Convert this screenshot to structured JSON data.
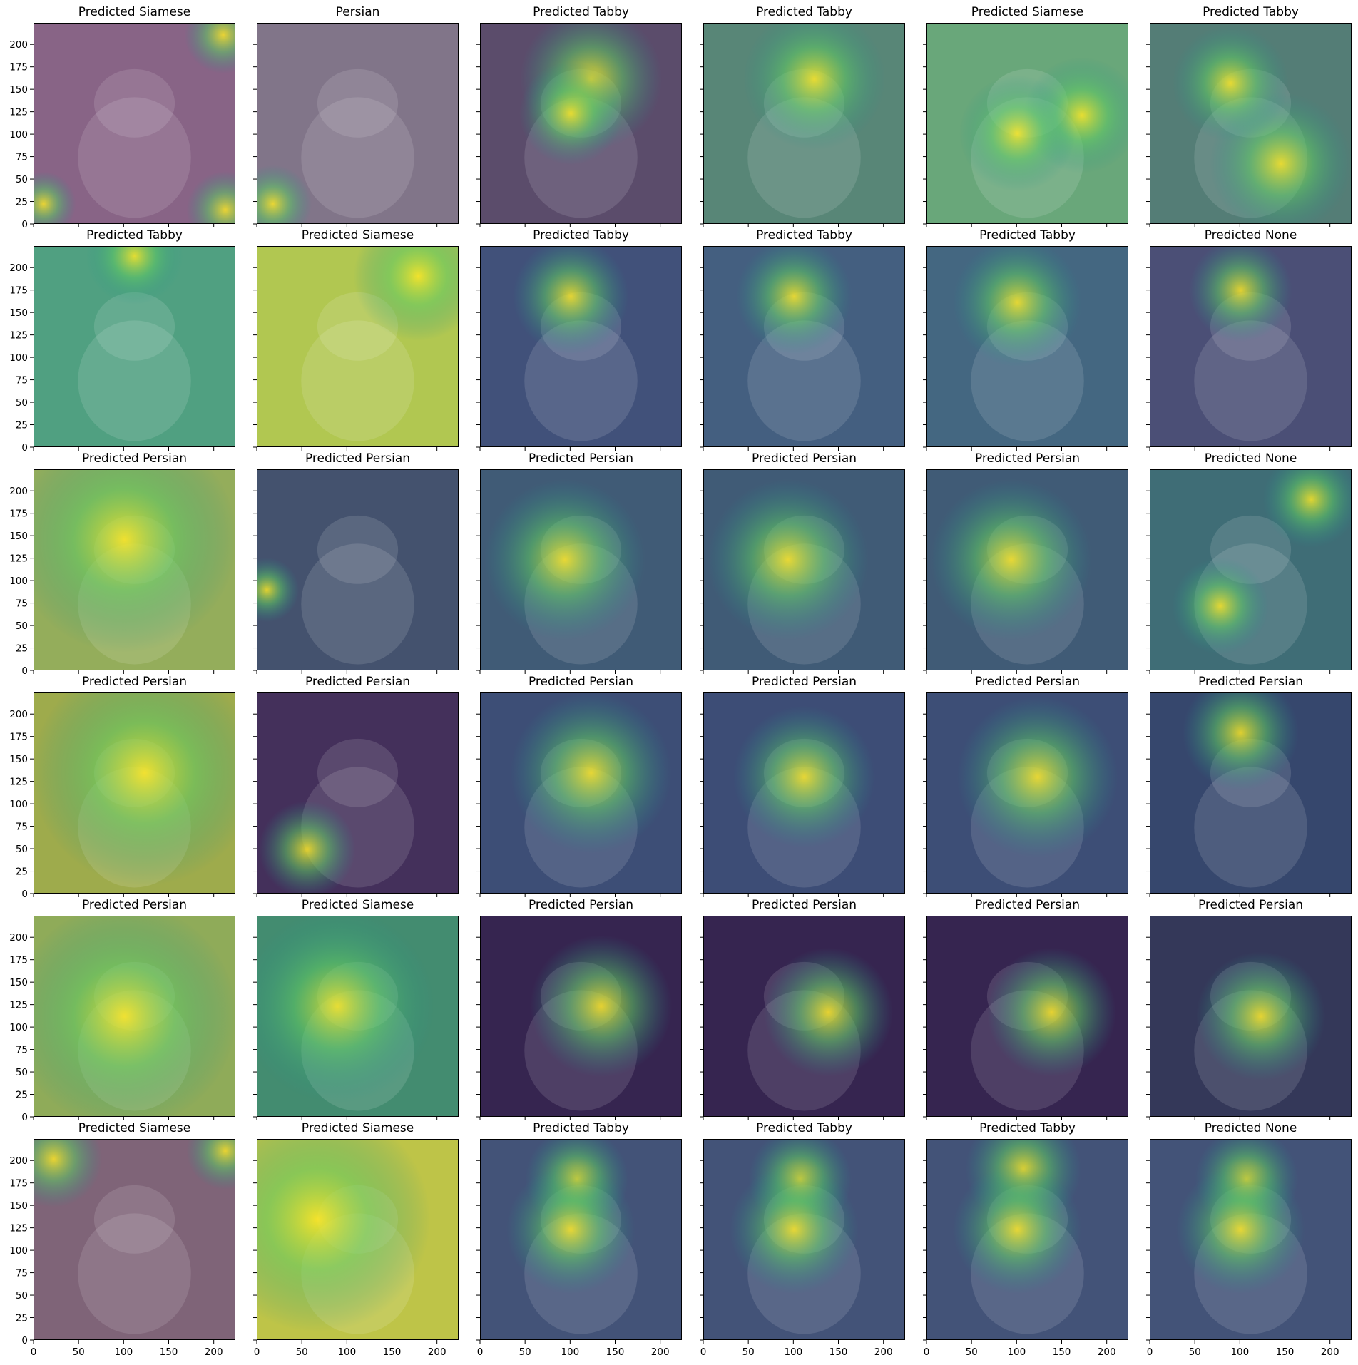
{
  "colormap": [
    "#440154",
    "#3b528b",
    "#21918c",
    "#5ec962",
    "#fde725"
  ],
  "chart_data": {
    "type": "heatmap",
    "description_grid": "6 rows x 6 columns of image panels with overlaid activation heatmaps",
    "xlim": [
      0,
      224
    ],
    "ylim": [
      0,
      224
    ],
    "xticks": [
      0,
      50,
      100,
      150,
      200
    ],
    "yticks": [
      0,
      25,
      50,
      75,
      100,
      125,
      150,
      175,
      200
    ],
    "panels": [
      [
        {
          "title": "Predicted Siamese",
          "bg": "#8f7a8c",
          "hot": [
            [
              0.94,
              0.06,
              0.12
            ],
            [
              0.95,
              0.93,
              0.12
            ],
            [
              0.05,
              0.9,
              0.1
            ]
          ],
          "tint": "#7a3d7a"
        },
        {
          "title": "Persian",
          "bg": "#8b8590",
          "hot": [
            [
              0.08,
              0.9,
              0.12
            ]
          ],
          "tint": "#6f5a7d"
        },
        {
          "title": "Predicted Tabby",
          "bg": "#6c5f76",
          "hot": [
            [
              0.55,
              0.28,
              0.22
            ],
            [
              0.45,
              0.45,
              0.16
            ]
          ],
          "tint": "#3c2a5a"
        },
        {
          "title": "Predicted Tabby",
          "bg": "#6f8a7c",
          "hot": [
            [
              0.55,
              0.28,
              0.22
            ]
          ],
          "tint": "#2f7f6f"
        },
        {
          "title": "Predicted Siamese",
          "bg": "#78a382",
          "hot": [
            [
              0.77,
              0.46,
              0.18
            ],
            [
              0.45,
              0.55,
              0.18
            ]
          ],
          "tint": "#4caf6e"
        },
        {
          "title": "Predicted Tabby",
          "bg": "#6a7f7a",
          "hot": [
            [
              0.65,
              0.7,
              0.22
            ],
            [
              0.4,
              0.3,
              0.18
            ]
          ],
          "tint": "#2c7c70"
        }
      ],
      [
        {
          "title": "Predicted Tabby",
          "bg": "#5fa08a",
          "hot": [
            [
              0.5,
              0.05,
              0.15
            ]
          ],
          "tint": "#37a06f"
        },
        {
          "title": "Predicted Siamese",
          "bg": "#b0c45c",
          "hot": [
            [
              0.8,
              0.15,
              0.2
            ]
          ],
          "tint": "#b5cf3b"
        },
        {
          "title": "Predicted Tabby",
          "bg": "#4c5d80",
          "hot": [
            [
              0.45,
              0.25,
              0.18
            ]
          ],
          "tint": "#2f3d70"
        },
        {
          "title": "Predicted Tabby",
          "bg": "#506985",
          "hot": [
            [
              0.45,
              0.25,
              0.18
            ]
          ],
          "tint": "#2f4d78"
        },
        {
          "title": "Predicted Tabby",
          "bg": "#506f86",
          "hot": [
            [
              0.45,
              0.28,
              0.2
            ]
          ],
          "tint": "#2e5a78"
        },
        {
          "title": "Predicted None",
          "bg": "#55587a",
          "hot": [
            [
              0.45,
              0.22,
              0.16
            ]
          ],
          "tint": "#3a3f70"
        }
      ],
      [
        {
          "title": "Predicted Persian",
          "bg": "#8da66a",
          "hot": [
            [
              0.45,
              0.35,
              0.35
            ]
          ],
          "tint": "#a3b940"
        },
        {
          "title": "Predicted Persian",
          "bg": "#4d5a6f",
          "hot": [
            [
              0.05,
              0.6,
              0.1
            ]
          ],
          "tint": "#34456d"
        },
        {
          "title": "Predicted Persian",
          "bg": "#4a6178",
          "hot": [
            [
              0.42,
              0.45,
              0.25
            ]
          ],
          "tint": "#2f4f72"
        },
        {
          "title": "Predicted Persian",
          "bg": "#4a6178",
          "hot": [
            [
              0.42,
              0.45,
              0.25
            ]
          ],
          "tint": "#2f4f72"
        },
        {
          "title": "Predicted Persian",
          "bg": "#4a6178",
          "hot": [
            [
              0.42,
              0.45,
              0.25
            ]
          ],
          "tint": "#2f4f72"
        },
        {
          "title": "Predicted None",
          "bg": "#4a6f78",
          "hot": [
            [
              0.8,
              0.15,
              0.15
            ],
            [
              0.35,
              0.68,
              0.15
            ]
          ],
          "tint": "#2c6a72"
        }
      ],
      [
        {
          "title": "Predicted Persian",
          "bg": "#98a557",
          "hot": [
            [
              0.55,
              0.4,
              0.35
            ]
          ],
          "tint": "#a8b83a"
        },
        {
          "title": "Predicted Persian",
          "bg": "#4a3a5f",
          "hot": [
            [
              0.25,
              0.78,
              0.15
            ]
          ],
          "tint": "#3a1f56"
        },
        {
          "title": "Predicted Persian",
          "bg": "#45577a",
          "hot": [
            [
              0.55,
              0.4,
              0.25
            ]
          ],
          "tint": "#2e3f70"
        },
        {
          "title": "Predicted Persian",
          "bg": "#45557a",
          "hot": [
            [
              0.5,
              0.42,
              0.22
            ]
          ],
          "tint": "#2e3f70"
        },
        {
          "title": "Predicted Persian",
          "bg": "#45577a",
          "hot": [
            [
              0.55,
              0.42,
              0.25
            ]
          ],
          "tint": "#2e3f70"
        },
        {
          "title": "Predicted Persian",
          "bg": "#3d4f70",
          "hot": [
            [
              0.45,
              0.2,
              0.18
            ]
          ],
          "tint": "#2c3a66"
        }
      ],
      [
        {
          "title": "Predicted Persian",
          "bg": "#88a06b",
          "hot": [
            [
              0.45,
              0.5,
              0.35
            ]
          ],
          "tint": "#9fbf3a"
        },
        {
          "title": "Predicted Siamese",
          "bg": "#4f8b73",
          "hot": [
            [
              0.4,
              0.45,
              0.3
            ]
          ],
          "tint": "#2f8f6a"
        },
        {
          "title": "Predicted Persian",
          "bg": "#3c2f56",
          "hot": [
            [
              0.6,
              0.45,
              0.22
            ]
          ],
          "tint": "#2a1446"
        },
        {
          "title": "Predicted Persian",
          "bg": "#3c2f56",
          "hot": [
            [
              0.62,
              0.48,
              0.2
            ]
          ],
          "tint": "#2a1446"
        },
        {
          "title": "Predicted Persian",
          "bg": "#3c2f56",
          "hot": [
            [
              0.62,
              0.48,
              0.2
            ]
          ],
          "tint": "#2a1446"
        },
        {
          "title": "Predicted Persian",
          "bg": "#3a3f5f",
          "hot": [
            [
              0.55,
              0.5,
              0.2
            ]
          ],
          "tint": "#2a2a50"
        }
      ],
      [
        {
          "title": "Predicted Siamese",
          "bg": "#8a7a80",
          "hot": [
            [
              0.95,
              0.06,
              0.12
            ],
            [
              0.1,
              0.1,
              0.15
            ]
          ],
          "tint": "#6a3d6a"
        },
        {
          "title": "Predicted Siamese",
          "bg": "#b8be55",
          "hot": [
            [
              0.3,
              0.4,
              0.35
            ]
          ],
          "tint": "#c9d231"
        },
        {
          "title": "Predicted Tabby",
          "bg": "#4f5f7c",
          "hot": [
            [
              0.48,
              0.2,
              0.16
            ],
            [
              0.45,
              0.45,
              0.2
            ]
          ],
          "tint": "#2f3f72"
        },
        {
          "title": "Predicted Tabby",
          "bg": "#4f5f7c",
          "hot": [
            [
              0.48,
              0.2,
              0.16
            ],
            [
              0.45,
              0.45,
              0.2
            ]
          ],
          "tint": "#2f3f72"
        },
        {
          "title": "Predicted Tabby",
          "bg": "#4f5f7c",
          "hot": [
            [
              0.48,
              0.15,
              0.18
            ],
            [
              0.45,
              0.45,
              0.2
            ]
          ],
          "tint": "#2f3f72"
        },
        {
          "title": "Predicted None",
          "bg": "#4f5f7c",
          "hot": [
            [
              0.48,
              0.2,
              0.16
            ],
            [
              0.45,
              0.45,
              0.2
            ]
          ],
          "tint": "#2f3f72"
        }
      ]
    ]
  }
}
